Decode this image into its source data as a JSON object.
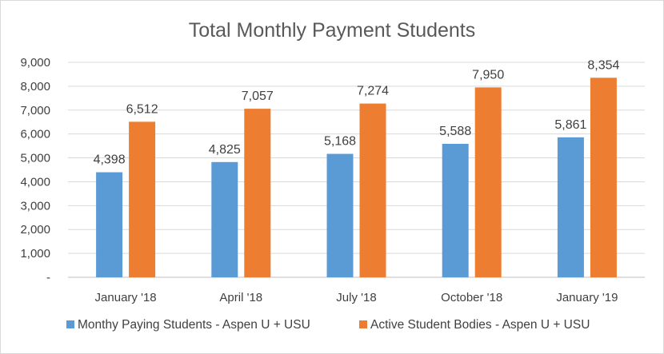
{
  "chart_data": {
    "type": "bar",
    "title": "Total Monthly Payment Students",
    "categories": [
      "January '18",
      "April '18",
      "July '18",
      "October '18",
      "January '19"
    ],
    "series": [
      {
        "name": "Monthy Paying Students - Aspen U + USU",
        "values": [
          4398,
          4825,
          5168,
          5588,
          5861
        ],
        "labels": [
          "4,398",
          "4,825",
          "5,168",
          "5,588",
          "5,861"
        ],
        "color": "#5b9bd5"
      },
      {
        "name": "Active Student Bodies - Aspen U + USU",
        "values": [
          6512,
          7057,
          7274,
          7950,
          8354
        ],
        "labels": [
          "6,512",
          "7,057",
          "7,274",
          "7,950",
          "8,354"
        ],
        "color": "#ed7d31"
      }
    ],
    "ylim": [
      0,
      9000
    ],
    "yticks": [
      0,
      1000,
      2000,
      3000,
      4000,
      5000,
      6000,
      7000,
      8000,
      9000
    ],
    "ytick_labels": [
      "-",
      "1,000",
      "2,000",
      "3,000",
      "4,000",
      "5,000",
      "6,000",
      "7,000",
      "8,000",
      "9,000"
    ],
    "grid": true,
    "legend_position": "bottom"
  }
}
